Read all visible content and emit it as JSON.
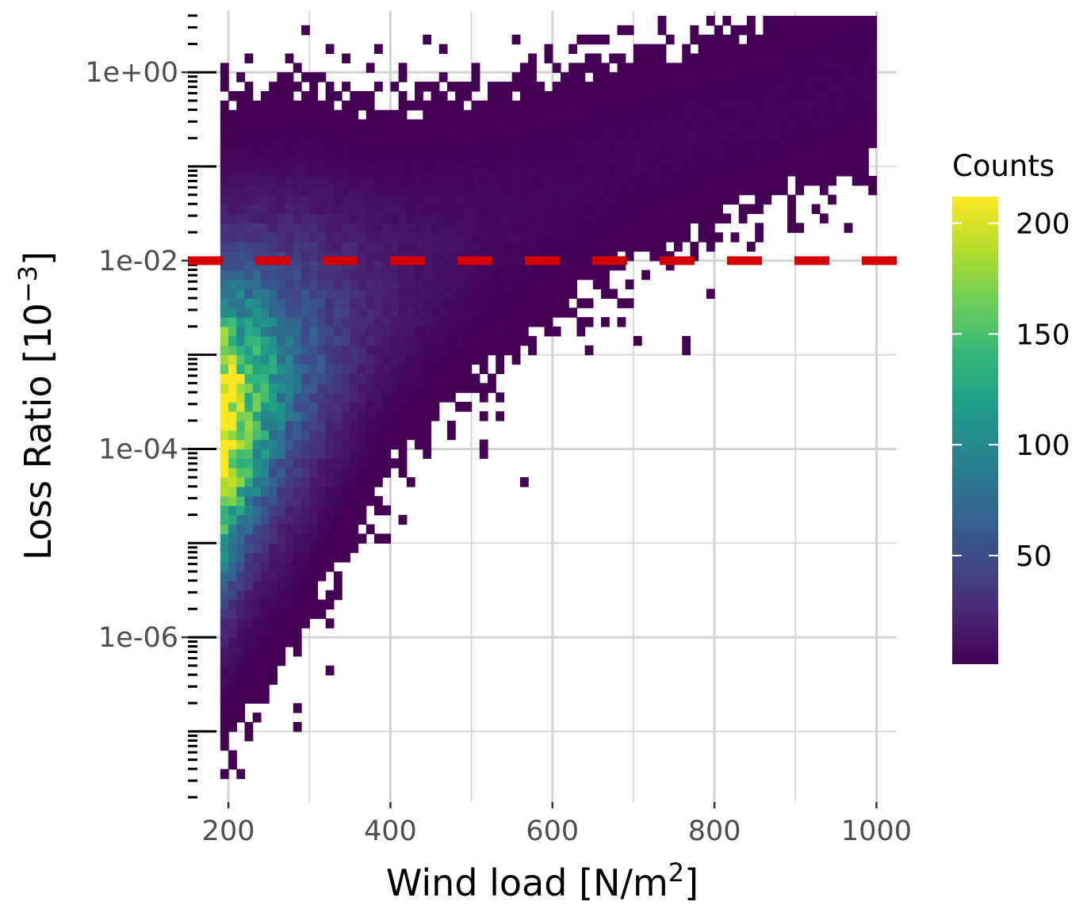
{
  "chart_data": {
    "type": "heatmap",
    "title": "",
    "xlabel_main": "Wind load [N/m",
    "xlabel_sup": "2",
    "xlabel_end": "]",
    "ylabel_main": "Loss Ratio [10",
    "ylabel_sup": "−3",
    "ylabel_end": "]",
    "xlim": [
      150,
      1025
    ],
    "ylim_log10": [
      -7.75,
      0.65
    ],
    "y_scale": "log10",
    "x_ticks": [
      200,
      400,
      600,
      800,
      1000
    ],
    "x_tick_labels": [
      "200",
      "400",
      "600",
      "800",
      "1000"
    ],
    "y_ticks_log10": [
      0,
      -2,
      -4,
      -6
    ],
    "y_tick_labels": [
      "1e+00",
      "1e-02",
      "1e-04",
      "1e-06"
    ],
    "grid": true,
    "reference_line": {
      "y": 0.01,
      "style": "dashed",
      "color": "#d40000"
    },
    "legend": {
      "title": "Counts",
      "position": "right",
      "min": 1,
      "max": 212,
      "ticks": [
        50,
        100,
        150,
        200
      ],
      "tick_labels": [
        "50",
        "100",
        "150",
        "200"
      ]
    },
    "colormap": [
      "#440154",
      "#482878",
      "#3e4989",
      "#31688e",
      "#26828e",
      "#1f9e89",
      "#35b779",
      "#6ece58",
      "#b5de2b",
      "#fde725"
    ],
    "density_model": {
      "peak_count": 212,
      "ridge": [
        [
          200,
          -3.75
        ],
        [
          240,
          -3.4
        ],
        [
          300,
          -3.0
        ],
        [
          400,
          -2.3
        ],
        [
          500,
          -1.8
        ],
        [
          600,
          -1.35
        ],
        [
          700,
          -0.9
        ],
        [
          800,
          -0.6
        ],
        [
          900,
          -0.35
        ],
        [
          1000,
          0.05
        ]
      ],
      "spread_log10": [
        [
          200,
          1.0
        ],
        [
          300,
          0.95
        ],
        [
          400,
          0.75
        ],
        [
          500,
          0.7
        ],
        [
          600,
          0.65
        ],
        [
          700,
          0.55
        ],
        [
          800,
          0.5
        ],
        [
          1000,
          0.5
        ]
      ],
      "min_wind": 190
    }
  }
}
